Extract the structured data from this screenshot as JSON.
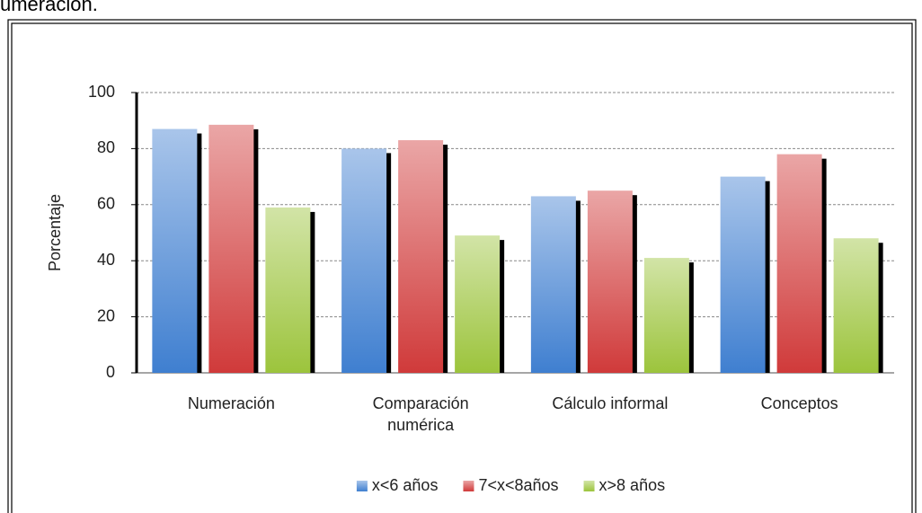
{
  "header_text": "umeración.",
  "chart_data": {
    "type": "bar",
    "ylabel": "Porcentaje",
    "categories": [
      "Numeración",
      "Comparación numérica",
      "Cálculo informal",
      "Conceptos"
    ],
    "series": [
      {
        "name": "x<6 años",
        "color": "#3f7fd0",
        "values": [
          87,
          80,
          63,
          70
        ]
      },
      {
        "name": "7<x<8años",
        "color": "#d03a3a",
        "values": [
          88.5,
          83,
          65,
          78
        ]
      },
      {
        "name": "x>8 años",
        "color": "#9cc43c",
        "values": [
          59,
          49,
          41,
          48
        ]
      }
    ],
    "ylim": [
      0,
      100
    ],
    "yticks": [
      0,
      20,
      40,
      60,
      80,
      100
    ],
    "grid": true,
    "legend": "bottom"
  }
}
